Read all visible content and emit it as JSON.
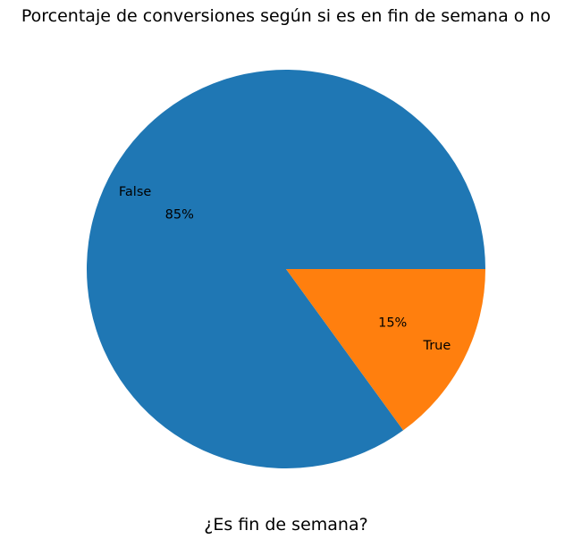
{
  "chart_data": {
    "type": "pie",
    "title": "Porcentaje de conversiones según si es en fin de semana o no",
    "xlabel": "¿Es fin de semana?",
    "categories": [
      "False",
      "True"
    ],
    "values": [
      85,
      15
    ],
    "pct_labels": [
      "85%",
      "15%"
    ],
    "colors": [
      "#1f77b4",
      "#ff7f0e"
    ],
    "start_angle_deg": 0,
    "direction": "counterclockwise"
  }
}
